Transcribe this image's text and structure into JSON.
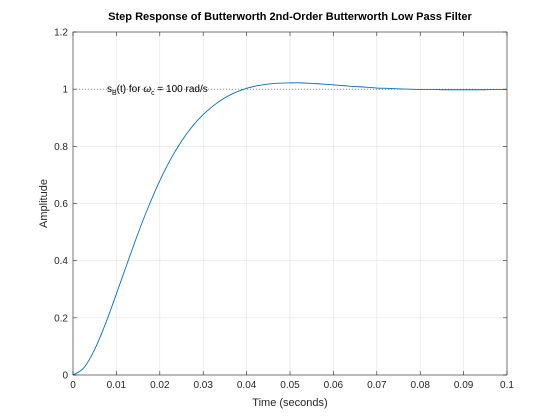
{
  "chart_data": {
    "type": "line",
    "title": "Step Response of Butterworth 2nd-Order Butterworth Low Pass Filter",
    "xlabel": "Time (seconds)",
    "ylabel": "Amplitude",
    "xlim": [
      0,
      0.1
    ],
    "ylim": [
      0,
      1.2
    ],
    "x_ticks": [
      "0",
      "0.01",
      "0.02",
      "0.03",
      "0.04",
      "0.05",
      "0.06",
      "0.07",
      "0.08",
      "0.09",
      "0.1"
    ],
    "y_ticks": [
      "0",
      "0.2",
      "0.4",
      "0.6",
      "0.8",
      "1",
      "1.2"
    ],
    "grid": true,
    "reference_line": {
      "y": 1,
      "style": "dotted"
    },
    "annotation": {
      "s": "s",
      "s_sub": "B",
      "mid": "(t) for ",
      "omega": "ω",
      "omega_sub": "c",
      "tail": " = 100 rad/s"
    },
    "series": [
      {
        "color": "#0072BD",
        "x": [
          0,
          0.0025,
          0.005,
          0.0075,
          0.01,
          0.0125,
          0.015,
          0.0175,
          0.02,
          0.0225,
          0.025,
          0.0275,
          0.03,
          0.0325,
          0.035,
          0.0375,
          0.04,
          0.0425,
          0.045,
          0.0475,
          0.05,
          0.0525,
          0.055,
          0.0575,
          0.06,
          0.0625,
          0.065,
          0.0675,
          0.07,
          0.0725,
          0.075,
          0.0775,
          0.08,
          0.0825,
          0.085,
          0.0875,
          0.09,
          0.0925,
          0.095,
          0.0975,
          0.1
        ],
        "y": [
          0,
          0.025,
          0.09,
          0.18,
          0.284,
          0.391,
          0.496,
          0.593,
          0.68,
          0.755,
          0.818,
          0.87,
          0.911,
          0.944,
          0.97,
          0.989,
          1.003,
          1.012,
          1.018,
          1.021,
          1.022,
          1.022,
          1.02,
          1.018,
          1.015,
          1.012,
          1.009,
          1.007,
          1.004,
          1.003,
          1.001,
          1.0,
          0.999,
          0.999,
          0.998,
          0.998,
          0.998,
          0.998,
          0.998,
          0.999,
          0.999
        ]
      }
    ]
  }
}
